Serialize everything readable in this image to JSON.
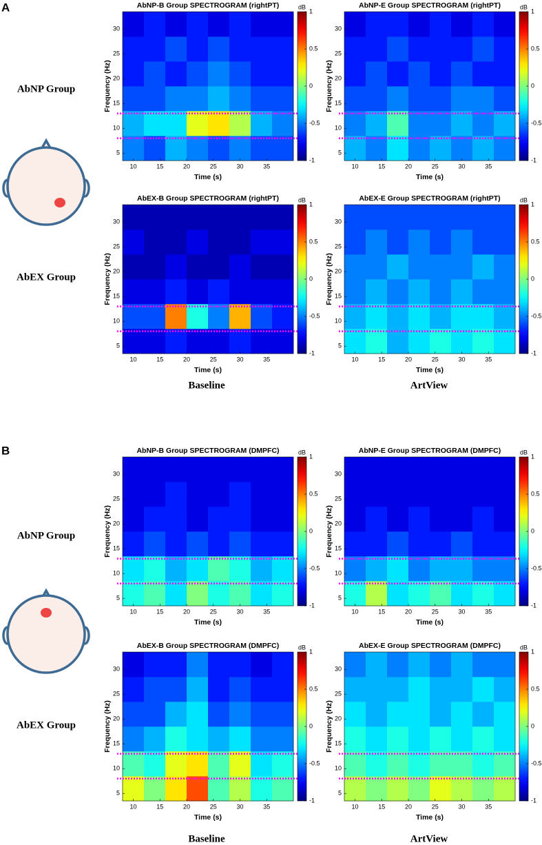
{
  "figure": {
    "panels": [
      {
        "label": "A",
        "rows": [
          "AbNP Group",
          "AbEX Group"
        ],
        "columns": [
          "Baseline",
          "ArtView"
        ]
      },
      {
        "label": "B",
        "rows": [
          "AbNP Group",
          "AbEX Group"
        ],
        "columns": [
          "Baseline",
          "ArtView"
        ]
      }
    ]
  },
  "chart_data": [
    {
      "type": "heatmap",
      "title": "AbNP-B Group SPECTROGRAM (rightPT)",
      "xlabel": "Time (s)",
      "ylabel": "Frequency (Hz)",
      "colorbar_label": "dB",
      "x": [
        10,
        14,
        18,
        22,
        26,
        30,
        34,
        38
      ],
      "y": [
        6,
        11,
        16,
        21,
        26,
        31
      ],
      "xlim": [
        8,
        40
      ],
      "ylim": [
        3.5,
        33.5
      ],
      "xticks": [
        10,
        15,
        20,
        25,
        30,
        35
      ],
      "yticks": [
        5,
        10,
        15,
        20,
        25,
        30
      ],
      "zlim": [
        -1,
        1
      ],
      "zticks": [
        -1,
        -0.5,
        0,
        0.5,
        1
      ],
      "colormap": "jet",
      "hlines": [
        8,
        13
      ],
      "hline_color": "#ff00ff",
      "values": [
        [
          -0.5,
          -0.6,
          -0.4,
          -0.5,
          -0.6,
          -0.5,
          -0.6,
          -0.6
        ],
        [
          -0.4,
          -0.3,
          -0.3,
          0.2,
          0.3,
          0.1,
          -0.4,
          -0.5
        ],
        [
          -0.6,
          -0.6,
          -0.5,
          -0.5,
          -0.4,
          -0.5,
          -0.6,
          -0.6
        ],
        [
          -0.7,
          -0.6,
          -0.7,
          -0.6,
          -0.5,
          -0.6,
          -0.7,
          -0.7
        ],
        [
          -0.7,
          -0.7,
          -0.6,
          -0.7,
          -0.6,
          -0.7,
          -0.7,
          -0.7
        ],
        [
          -0.8,
          -0.7,
          -0.8,
          -0.7,
          -0.8,
          -0.7,
          -0.8,
          -0.8
        ]
      ]
    },
    {
      "type": "heatmap",
      "title": "AbNP-E Group SPECTROGRAM (rightPT)",
      "xlabel": "Time (s)",
      "ylabel": "Frequency (Hz)",
      "colorbar_label": "dB",
      "x": [
        10,
        14,
        18,
        22,
        26,
        30,
        34,
        38
      ],
      "y": [
        6,
        11,
        16,
        21,
        26,
        31
      ],
      "xlim": [
        8,
        40
      ],
      "ylim": [
        3.5,
        33.5
      ],
      "xticks": [
        10,
        15,
        20,
        25,
        30,
        35
      ],
      "yticks": [
        5,
        10,
        15,
        20,
        25,
        30
      ],
      "zlim": [
        -1,
        1
      ],
      "zticks": [
        -1,
        -0.5,
        0,
        0.5,
        1
      ],
      "colormap": "jet",
      "hlines": [
        8,
        13
      ],
      "hline_color": "#ff00ff",
      "values": [
        [
          -0.4,
          -0.5,
          -0.3,
          -0.5,
          -0.4,
          -0.5,
          -0.4,
          -0.5
        ],
        [
          -0.5,
          -0.4,
          -0.1,
          -0.5,
          -0.5,
          -0.4,
          -0.5,
          -0.4
        ],
        [
          -0.6,
          -0.6,
          -0.5,
          -0.6,
          -0.6,
          -0.5,
          -0.5,
          -0.6
        ],
        [
          -0.7,
          -0.6,
          -0.7,
          -0.6,
          -0.7,
          -0.6,
          -0.7,
          -0.7
        ],
        [
          -0.7,
          -0.7,
          -0.6,
          -0.7,
          -0.7,
          -0.7,
          -0.6,
          -0.7
        ],
        [
          -0.8,
          -0.7,
          -0.7,
          -0.8,
          -0.7,
          -0.8,
          -0.7,
          -0.8
        ]
      ]
    },
    {
      "type": "heatmap",
      "title": "AbEX-B Group SPECTROGRAM (rightPT)",
      "xlabel": "Time (s)",
      "ylabel": "Frequency (Hz)",
      "colorbar_label": "dB",
      "x": [
        10,
        14,
        18,
        22,
        26,
        30,
        34,
        38
      ],
      "y": [
        6,
        11,
        16,
        21,
        26,
        31
      ],
      "xlim": [
        8,
        40
      ],
      "ylim": [
        3.5,
        33.5
      ],
      "xticks": [
        10,
        15,
        20,
        25,
        30,
        35
      ],
      "yticks": [
        5,
        10,
        15,
        20,
        25,
        30
      ],
      "zlim": [
        -1,
        1
      ],
      "zticks": [
        -1,
        -0.5,
        0,
        0.5,
        1
      ],
      "colormap": "jet",
      "hlines": [
        8,
        13
      ],
      "hline_color": "#ff00ff",
      "values": [
        [
          -0.8,
          -0.8,
          -0.7,
          -0.8,
          -0.8,
          -0.7,
          -0.8,
          -0.8
        ],
        [
          -0.6,
          -0.6,
          0.5,
          -0.2,
          -0.5,
          0.4,
          -0.6,
          -0.7
        ],
        [
          -0.8,
          -0.8,
          -0.7,
          -0.8,
          -0.7,
          -0.8,
          -0.8,
          -0.8
        ],
        [
          -0.9,
          -0.9,
          -0.8,
          -0.9,
          -0.9,
          -0.8,
          -0.9,
          -0.9
        ],
        [
          -0.8,
          -0.9,
          -0.9,
          -0.8,
          -0.9,
          -0.9,
          -0.8,
          -0.8
        ],
        [
          -0.9,
          -0.9,
          -0.9,
          -0.9,
          -0.9,
          -0.9,
          -0.9,
          -0.9
        ]
      ]
    },
    {
      "type": "heatmap",
      "title": "AbEX-E Group SPECTROGRAM (rightPT)",
      "xlabel": "Time (s)",
      "ylabel": "Frequency (Hz)",
      "colorbar_label": "dB",
      "x": [
        10,
        14,
        18,
        22,
        26,
        30,
        34,
        38
      ],
      "y": [
        6,
        11,
        16,
        21,
        26,
        31
      ],
      "xlim": [
        8,
        40
      ],
      "ylim": [
        3.5,
        33.5
      ],
      "xticks": [
        10,
        15,
        20,
        25,
        30,
        35
      ],
      "yticks": [
        5,
        10,
        15,
        20,
        25,
        30
      ],
      "zlim": [
        -1,
        1
      ],
      "zticks": [
        -1,
        -0.5,
        0,
        0.5,
        1
      ],
      "colormap": "jet",
      "hlines": [
        8,
        13
      ],
      "hline_color": "#ff00ff",
      "values": [
        [
          -0.3,
          -0.2,
          -0.4,
          -0.3,
          -0.2,
          -0.3,
          -0.2,
          -0.3
        ],
        [
          -0.4,
          -0.3,
          -0.4,
          -0.3,
          -0.4,
          -0.3,
          -0.3,
          -0.4
        ],
        [
          -0.5,
          -0.4,
          -0.5,
          -0.4,
          -0.5,
          -0.4,
          -0.5,
          -0.5
        ],
        [
          -0.5,
          -0.5,
          -0.4,
          -0.5,
          -0.5,
          -0.5,
          -0.4,
          -0.5
        ],
        [
          -0.6,
          -0.5,
          -0.6,
          -0.5,
          -0.6,
          -0.5,
          -0.6,
          -0.6
        ],
        [
          -0.6,
          -0.6,
          -0.6,
          -0.6,
          -0.6,
          -0.6,
          -0.6,
          -0.6
        ]
      ]
    },
    {
      "type": "heatmap",
      "title": "AbNP-B Group SPECTROGRAM (DMPFC)",
      "xlabel": "Time (s)",
      "ylabel": "Frequency (Hz)",
      "colorbar_label": "dB",
      "x": [
        10,
        14,
        18,
        22,
        26,
        30,
        34,
        38
      ],
      "y": [
        6,
        11,
        16,
        21,
        26,
        31
      ],
      "xlim": [
        8,
        40
      ],
      "ylim": [
        3.5,
        33.5
      ],
      "xticks": [
        10,
        15,
        20,
        25,
        30,
        35
      ],
      "yticks": [
        5,
        10,
        15,
        20,
        25,
        30
      ],
      "zlim": [
        -1,
        1
      ],
      "zticks": [
        -1,
        -0.5,
        0,
        0.5,
        1
      ],
      "colormap": "jet",
      "hlines": [
        8,
        13
      ],
      "hline_color": "#ff00ff",
      "values": [
        [
          -0.2,
          -0.1,
          -0.3,
          0.0,
          -0.2,
          -0.1,
          -0.3,
          -0.2
        ],
        [
          -0.3,
          -0.2,
          -0.4,
          -0.3,
          -0.1,
          -0.2,
          -0.4,
          -0.3
        ],
        [
          -0.7,
          -0.6,
          -0.7,
          -0.6,
          -0.7,
          -0.6,
          -0.7,
          -0.7
        ],
        [
          -0.8,
          -0.7,
          -0.7,
          -0.8,
          -0.7,
          -0.7,
          -0.8,
          -0.8
        ],
        [
          -0.8,
          -0.8,
          -0.7,
          -0.8,
          -0.8,
          -0.7,
          -0.8,
          -0.8
        ],
        [
          -0.8,
          -0.8,
          -0.8,
          -0.8,
          -0.8,
          -0.8,
          -0.8,
          -0.8
        ]
      ]
    },
    {
      "type": "heatmap",
      "title": "AbNP-E  Group SPECTROGRAM (DMPFC)",
      "xlabel": "Time (s)",
      "ylabel": "Frequency (Hz)",
      "colorbar_label": "dB",
      "x": [
        10,
        14,
        18,
        22,
        26,
        30,
        34,
        38
      ],
      "y": [
        6,
        11,
        16,
        21,
        26,
        31
      ],
      "xlim": [
        8,
        40
      ],
      "ylim": [
        3.5,
        33.5
      ],
      "xticks": [
        10,
        15,
        20,
        25,
        30,
        35
      ],
      "yticks": [
        5,
        10,
        15,
        20,
        25,
        30
      ],
      "zlim": [
        -1,
        1
      ],
      "zticks": [
        -1,
        -0.5,
        0,
        0.5,
        1
      ],
      "colormap": "jet",
      "hlines": [
        8,
        13
      ],
      "hline_color": "#ff00ff",
      "values": [
        [
          -0.2,
          0.1,
          -0.3,
          -0.2,
          -0.1,
          -0.3,
          -0.2,
          -0.3
        ],
        [
          -0.5,
          -0.4,
          -0.3,
          -0.5,
          -0.4,
          -0.4,
          -0.5,
          -0.5
        ],
        [
          -0.7,
          -0.7,
          -0.6,
          -0.7,
          -0.7,
          -0.6,
          -0.7,
          -0.7
        ],
        [
          -0.8,
          -0.7,
          -0.8,
          -0.7,
          -0.8,
          -0.8,
          -0.7,
          -0.8
        ],
        [
          -0.8,
          -0.8,
          -0.8,
          -0.8,
          -0.8,
          -0.8,
          -0.8,
          -0.8
        ],
        [
          -0.8,
          -0.8,
          -0.8,
          -0.8,
          -0.8,
          -0.8,
          -0.8,
          -0.8
        ]
      ]
    },
    {
      "type": "heatmap",
      "title": "AbEX-B Group SPECTROGRAM (DMPFC)",
      "xlabel": "Time (s)",
      "ylabel": "Frequency (Hz)",
      "colorbar_label": "dB",
      "x": [
        10,
        14,
        18,
        22,
        26,
        30,
        34,
        38
      ],
      "y": [
        6,
        11,
        16,
        21,
        26,
        31
      ],
      "xlim": [
        8,
        40
      ],
      "ylim": [
        3.5,
        33.5
      ],
      "xticks": [
        10,
        15,
        20,
        25,
        30,
        35
      ],
      "yticks": [
        5,
        10,
        15,
        20,
        25,
        30
      ],
      "zlim": [
        -1,
        1
      ],
      "zticks": [
        -1,
        -0.5,
        0,
        0.5,
        1
      ],
      "colormap": "jet",
      "hlines": [
        8,
        13
      ],
      "hline_color": "#ff00ff",
      "values": [
        [
          0.2,
          0.0,
          0.3,
          0.6,
          -0.1,
          0.1,
          -0.2,
          -0.1
        ],
        [
          -0.1,
          -0.2,
          0.2,
          0.3,
          -0.1,
          0.2,
          -0.3,
          -0.2
        ],
        [
          -0.5,
          -0.4,
          -0.2,
          -0.3,
          -0.4,
          -0.3,
          -0.5,
          -0.5
        ],
        [
          -0.6,
          -0.6,
          -0.4,
          -0.3,
          -0.6,
          -0.5,
          -0.6,
          -0.6
        ],
        [
          -0.7,
          -0.6,
          -0.6,
          -0.4,
          -0.7,
          -0.6,
          -0.7,
          -0.7
        ],
        [
          -0.8,
          -0.7,
          -0.7,
          -0.5,
          -0.7,
          -0.7,
          -0.8,
          -0.7
        ]
      ]
    },
    {
      "type": "heatmap",
      "title": "AbEX-E Group SPECTROGRAM (DMPFC)",
      "xlabel": "Time (s)",
      "ylabel": "Frequency (Hz)",
      "colorbar_label": "dB",
      "x": [
        10,
        14,
        18,
        22,
        26,
        30,
        34,
        38
      ],
      "y": [
        6,
        11,
        16,
        21,
        26,
        31
      ],
      "xlim": [
        8,
        40
      ],
      "ylim": [
        3.5,
        33.5
      ],
      "xticks": [
        10,
        15,
        20,
        25,
        30,
        35
      ],
      "yticks": [
        5,
        10,
        15,
        20,
        25,
        30
      ],
      "zlim": [
        -1,
        1
      ],
      "zticks": [
        -1,
        -0.5,
        0,
        0.5,
        1
      ],
      "colormap": "jet",
      "hlines": [
        8,
        13
      ],
      "hline_color": "#ff00ff",
      "values": [
        [
          0.1,
          0.0,
          0.1,
          0.0,
          0.2,
          0.1,
          0.0,
          0.1
        ],
        [
          -0.1,
          -0.2,
          -0.1,
          -0.2,
          -0.1,
          -0.1,
          -0.2,
          -0.1
        ],
        [
          -0.2,
          -0.3,
          -0.2,
          -0.3,
          -0.2,
          -0.3,
          -0.2,
          -0.3
        ],
        [
          -0.3,
          -0.4,
          -0.3,
          -0.3,
          -0.4,
          -0.3,
          -0.4,
          -0.3
        ],
        [
          -0.4,
          -0.4,
          -0.4,
          -0.3,
          -0.4,
          -0.4,
          -0.3,
          -0.4
        ],
        [
          -0.5,
          -0.4,
          -0.5,
          -0.4,
          -0.5,
          -0.4,
          -0.5,
          -0.5
        ]
      ]
    }
  ]
}
